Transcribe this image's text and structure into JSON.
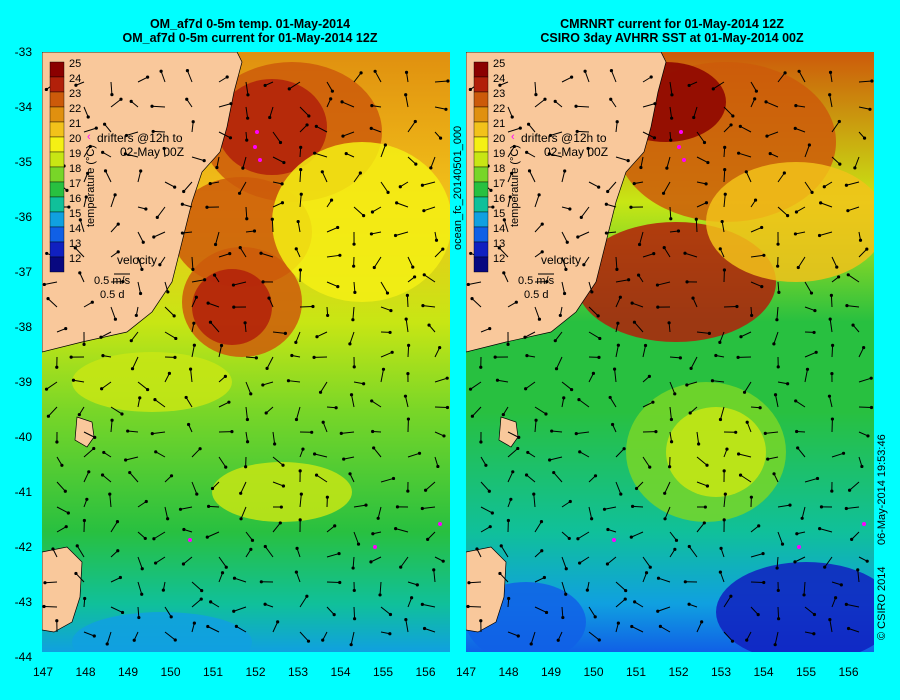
{
  "left_panel": {
    "title_line1": "OM_af7d 0-5m temp. 01-May-2014",
    "title_line2": "OM_af7d 0-5m current for 01-May-2014 12Z"
  },
  "right_panel": {
    "title_line1": "CMRNRT current for 01-May-2014 12Z",
    "title_line2": "CSIRO 3day AVHRR SST at 01-May-2014 00Z"
  },
  "legend": {
    "drifters_line1": "drifters @12h to",
    "drifters_line2": "02-May 00Z",
    "velocity_label": "velocity",
    "velocity_scale": "0.5 m/s",
    "velocity_time": "0.5 d"
  },
  "colorbar": {
    "title": "temperature (°C)",
    "ticks": [
      "25",
      "24",
      "23",
      "22",
      "21",
      "20",
      "19",
      "18",
      "17",
      "16",
      "15",
      "14",
      "13",
      "12"
    ],
    "colors": [
      "#8b0000",
      "#b2200a",
      "#cc5a0a",
      "#e0900f",
      "#f2c21a",
      "#f5f014",
      "#c8e614",
      "#78d628",
      "#28c040",
      "#10c09a",
      "#10a0e0",
      "#1060e6",
      "#1020c0",
      "#080880"
    ]
  },
  "axes": {
    "lat_ticks": [
      "-33",
      "-34",
      "-35",
      "-36",
      "-37",
      "-38",
      "-39",
      "-40",
      "-41",
      "-42",
      "-43",
      "-44"
    ],
    "lon_ticks": [
      "147",
      "148",
      "149",
      "150",
      "151",
      "152",
      "153",
      "154",
      "155",
      "156"
    ]
  },
  "side_labels": {
    "run_id": "ocean_fc_20140501_000",
    "timestamp": "06-May-2014 19:53:46",
    "copyright": "© CSIRO 2014"
  },
  "colors": {
    "background": "#00ffff",
    "land": "#f9c89b",
    "drifter": "#ff00ff"
  }
}
